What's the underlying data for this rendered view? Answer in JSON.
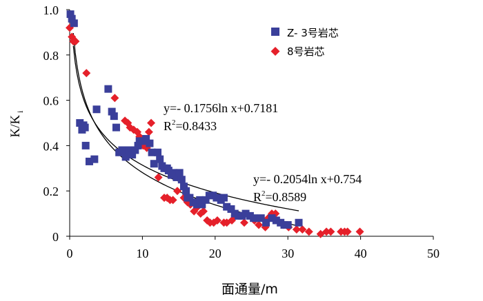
{
  "chart_data": {
    "type": "scatter",
    "title": "",
    "xlabel": "面通量/m",
    "ylabel": {
      "main": "K/K",
      "sub": "i"
    },
    "xlim": [
      0,
      50
    ],
    "ylim": [
      0,
      1.0
    ],
    "xticks": [
      "0",
      "10",
      "20",
      "30",
      "40",
      "50"
    ],
    "yticks": [
      "0",
      "0.2",
      "0.4",
      "0.6",
      "0.8",
      "1.0"
    ],
    "grid": false,
    "legend_position": "top-right",
    "colors": {
      "squares": "#3a3f9a",
      "diamonds": "#e5202a",
      "fit": "#000000",
      "axis": "#000000"
    },
    "series": [
      {
        "name": "Z- 3号岩芯",
        "marker": "square",
        "points": [
          [
            0.1,
            0.98
          ],
          [
            0.3,
            0.96
          ],
          [
            0.6,
            0.94
          ],
          [
            1.4,
            0.5
          ],
          [
            1.7,
            0.47
          ],
          [
            1.9,
            0.49
          ],
          [
            2.1,
            0.48
          ],
          [
            2.2,
            0.4
          ],
          [
            2.7,
            0.33
          ],
          [
            3.4,
            0.34
          ],
          [
            3.7,
            0.56
          ],
          [
            5.3,
            0.65
          ],
          [
            5.8,
            0.55
          ],
          [
            6.1,
            0.53
          ],
          [
            6.4,
            0.48
          ],
          [
            6.8,
            0.37
          ],
          [
            7.2,
            0.38
          ],
          [
            7.7,
            0.35
          ],
          [
            8.2,
            0.38
          ],
          [
            8.6,
            0.36
          ],
          [
            9.0,
            0.38
          ],
          [
            9.4,
            0.4
          ],
          [
            9.6,
            0.42
          ],
          [
            10.1,
            0.42
          ],
          [
            10.5,
            0.43
          ],
          [
            11.0,
            0.41
          ],
          [
            11.3,
            0.37
          ],
          [
            11.6,
            0.32
          ],
          [
            12.1,
            0.37
          ],
          [
            12.4,
            0.34
          ],
          [
            12.7,
            0.31
          ],
          [
            13.0,
            0.3
          ],
          [
            13.4,
            0.3
          ],
          [
            13.6,
            0.29
          ],
          [
            14.0,
            0.27
          ],
          [
            14.3,
            0.28
          ],
          [
            14.7,
            0.26
          ],
          [
            15.1,
            0.28
          ],
          [
            15.4,
            0.25
          ],
          [
            15.7,
            0.22
          ],
          [
            16.0,
            0.2
          ],
          [
            16.2,
            0.17
          ],
          [
            16.5,
            0.17
          ],
          [
            17.0,
            0.15
          ],
          [
            17.5,
            0.14
          ],
          [
            17.9,
            0.16
          ],
          [
            18.2,
            0.14
          ],
          [
            18.7,
            0.16
          ],
          [
            19.2,
            0.18
          ],
          [
            19.7,
            0.18
          ],
          [
            20.2,
            0.17
          ],
          [
            20.8,
            0.16
          ],
          [
            21.2,
            0.17
          ],
          [
            21.6,
            0.13
          ],
          [
            22.2,
            0.12
          ],
          [
            22.7,
            0.1
          ],
          [
            23.2,
            0.09
          ],
          [
            23.7,
            0.09
          ],
          [
            24.2,
            0.1
          ],
          [
            24.8,
            0.09
          ],
          [
            25.3,
            0.08
          ],
          [
            26.3,
            0.08
          ],
          [
            27.0,
            0.06
          ],
          [
            27.8,
            0.08
          ],
          [
            28.4,
            0.07
          ],
          [
            29.0,
            0.06
          ],
          [
            29.5,
            0.05
          ],
          [
            30.0,
            0.05
          ],
          [
            31.5,
            0.06
          ]
        ]
      },
      {
        "name": "8号岩芯",
        "marker": "diamond",
        "points": [
          [
            0.0,
            0.92
          ],
          [
            0.3,
            0.88
          ],
          [
            0.5,
            0.86
          ],
          [
            0.8,
            0.86
          ],
          [
            2.3,
            0.72
          ],
          [
            6.2,
            0.61
          ],
          [
            7.6,
            0.51
          ],
          [
            8.0,
            0.5
          ],
          [
            8.3,
            0.48
          ],
          [
            8.8,
            0.47
          ],
          [
            9.3,
            0.46
          ],
          [
            9.6,
            0.44
          ],
          [
            10.1,
            0.4
          ],
          [
            10.6,
            0.39
          ],
          [
            10.9,
            0.46
          ],
          [
            11.2,
            0.5
          ],
          [
            12.2,
            0.26
          ],
          [
            13.0,
            0.17
          ],
          [
            13.4,
            0.17
          ],
          [
            13.8,
            0.16
          ],
          [
            14.2,
            0.16
          ],
          [
            14.8,
            0.2
          ],
          [
            15.3,
            0.25
          ],
          [
            15.7,
            0.17
          ],
          [
            16.2,
            0.15
          ],
          [
            16.6,
            0.14
          ],
          [
            17.1,
            0.11
          ],
          [
            17.6,
            0.13
          ],
          [
            18.0,
            0.1
          ],
          [
            18.4,
            0.11
          ],
          [
            18.9,
            0.07
          ],
          [
            19.3,
            0.06
          ],
          [
            19.8,
            0.06
          ],
          [
            20.3,
            0.07
          ],
          [
            21.2,
            0.06
          ],
          [
            21.6,
            0.06
          ],
          [
            22.3,
            0.07
          ],
          [
            22.7,
            0.09
          ],
          [
            24.0,
            0.06
          ],
          [
            25.4,
            0.07
          ],
          [
            26.0,
            0.05
          ],
          [
            26.9,
            0.04
          ],
          [
            27.3,
            0.08
          ],
          [
            27.8,
            0.1
          ],
          [
            28.3,
            0.1
          ],
          [
            29.4,
            0.05
          ],
          [
            30.1,
            0.04
          ],
          [
            31.2,
            0.03
          ],
          [
            32.0,
            0.03
          ],
          [
            32.9,
            0.02
          ],
          [
            34.5,
            0.01
          ],
          [
            35.3,
            0.02
          ],
          [
            35.9,
            0.02
          ],
          [
            37.3,
            0.02
          ],
          [
            37.8,
            0.02
          ],
          [
            38.2,
            0.02
          ],
          [
            39.9,
            0.02
          ]
        ]
      }
    ],
    "fits": [
      {
        "equation": "y=- 0.1756ln x+0.7181",
        "r2_label": "R",
        "r2_exp": "2",
        "r2_value": "=0.8433",
        "a": -0.1756,
        "b": 0.7181,
        "x_range": [
          0.5,
          31.5
        ]
      },
      {
        "equation": "y=- 0.2054ln x+0.754",
        "r2_label": "R",
        "r2_exp": "2",
        "r2_value": "=0.8589",
        "a": -0.2054,
        "b": 0.754,
        "x_range": [
          0.5,
          31.5
        ]
      }
    ]
  }
}
